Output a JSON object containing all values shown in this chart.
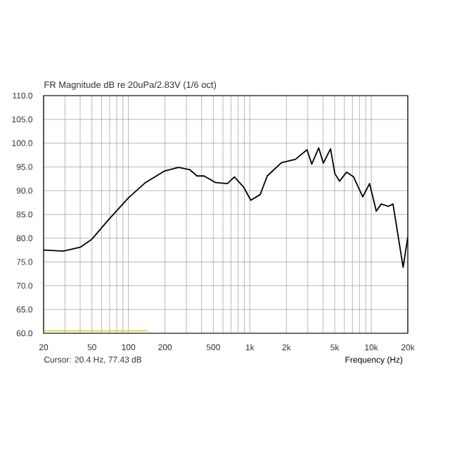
{
  "chart_data": {
    "type": "line",
    "title": "FR Magnitude dB re 20uPa/2.83V (1/6 oct)",
    "xlabel": "Frequency (Hz)",
    "annotations": [
      "Cursor: 20.4 Hz, 77.43 dB"
    ],
    "log": "x",
    "grid": true,
    "marker": "none",
    "line_style": "solid",
    "xlim": [
      20,
      20000
    ],
    "ylim": [
      60,
      110
    ],
    "xticks": [
      20,
      {
        "value": 30,
        "label": null
      },
      {
        "value": 40,
        "label": null
      },
      50,
      {
        "value": 60,
        "label": null
      },
      {
        "value": 70,
        "label": null
      },
      {
        "value": 80,
        "label": null
      },
      {
        "value": 90,
        "label": null
      },
      100,
      200,
      {
        "value": 300,
        "label": null
      },
      {
        "value": 400,
        "label": null
      },
      500,
      {
        "value": 600,
        "label": null
      },
      {
        "value": 700,
        "label": null
      },
      {
        "value": 800,
        "label": null
      },
      {
        "value": 900,
        "label": null
      },
      {
        "value": 1000,
        "label": "1k"
      },
      {
        "value": 2000,
        "label": "2k"
      },
      {
        "value": 3000,
        "label": null
      },
      {
        "value": 4000,
        "label": null
      },
      {
        "value": 5000,
        "label": "5k"
      },
      {
        "value": 6000,
        "label": null
      },
      {
        "value": 7000,
        "label": null
      },
      {
        "value": 8000,
        "label": null
      },
      {
        "value": 9000,
        "label": null
      },
      {
        "value": 10000,
        "label": "10k"
      },
      {
        "value": 20000,
        "label": "20k"
      }
    ],
    "yticks": [
      {
        "value": 60,
        "label": "60.0"
      },
      {
        "value": 65,
        "label": "65.0"
      },
      {
        "value": 70,
        "label": "70.0"
      },
      {
        "value": 75,
        "label": "75.0"
      },
      {
        "value": 80,
        "label": "80.0"
      },
      {
        "value": 85,
        "label": "85.0"
      },
      {
        "value": 90,
        "label": "90.0"
      },
      {
        "value": 95,
        "label": "95.0"
      },
      {
        "value": 100,
        "label": "100.0"
      },
      {
        "value": 105,
        "label": "105.0"
      },
      {
        "value": 110,
        "label": "110.0"
      }
    ],
    "series": [
      {
        "color": "#000000",
        "x": [
          20,
          29,
          40,
          50,
          68,
          100,
          138,
          197,
          257,
          321,
          367,
          419,
          523,
          653,
          746,
          891,
          1018,
          1217,
          1391,
          1820,
          2372,
          2958,
          3236,
          3690,
          4030,
          4620,
          5010,
          5480,
          6250,
          7150,
          8500,
          9680,
          11000,
          12100,
          13800,
          15100,
          18300,
          20000
        ],
        "values": [
          77.5,
          77.3,
          78.1,
          79.8,
          83.8,
          88.5,
          91.7,
          94.1,
          94.9,
          94.4,
          93.1,
          93.1,
          91.7,
          91.5,
          92.9,
          90.7,
          88.0,
          89.2,
          93.1,
          95.9,
          96.6,
          98.6,
          95.6,
          99.0,
          95.8,
          98.8,
          93.6,
          92.0,
          93.9,
          92.9,
          88.7,
          91.5,
          85.7,
          87.2,
          86.7,
          87.2,
          73.9,
          80.3
        ]
      },
      {
        "color": "#c8c800",
        "x": [
          20,
          144
        ],
        "values": [
          60.5,
          60.5
        ]
      }
    ]
  }
}
